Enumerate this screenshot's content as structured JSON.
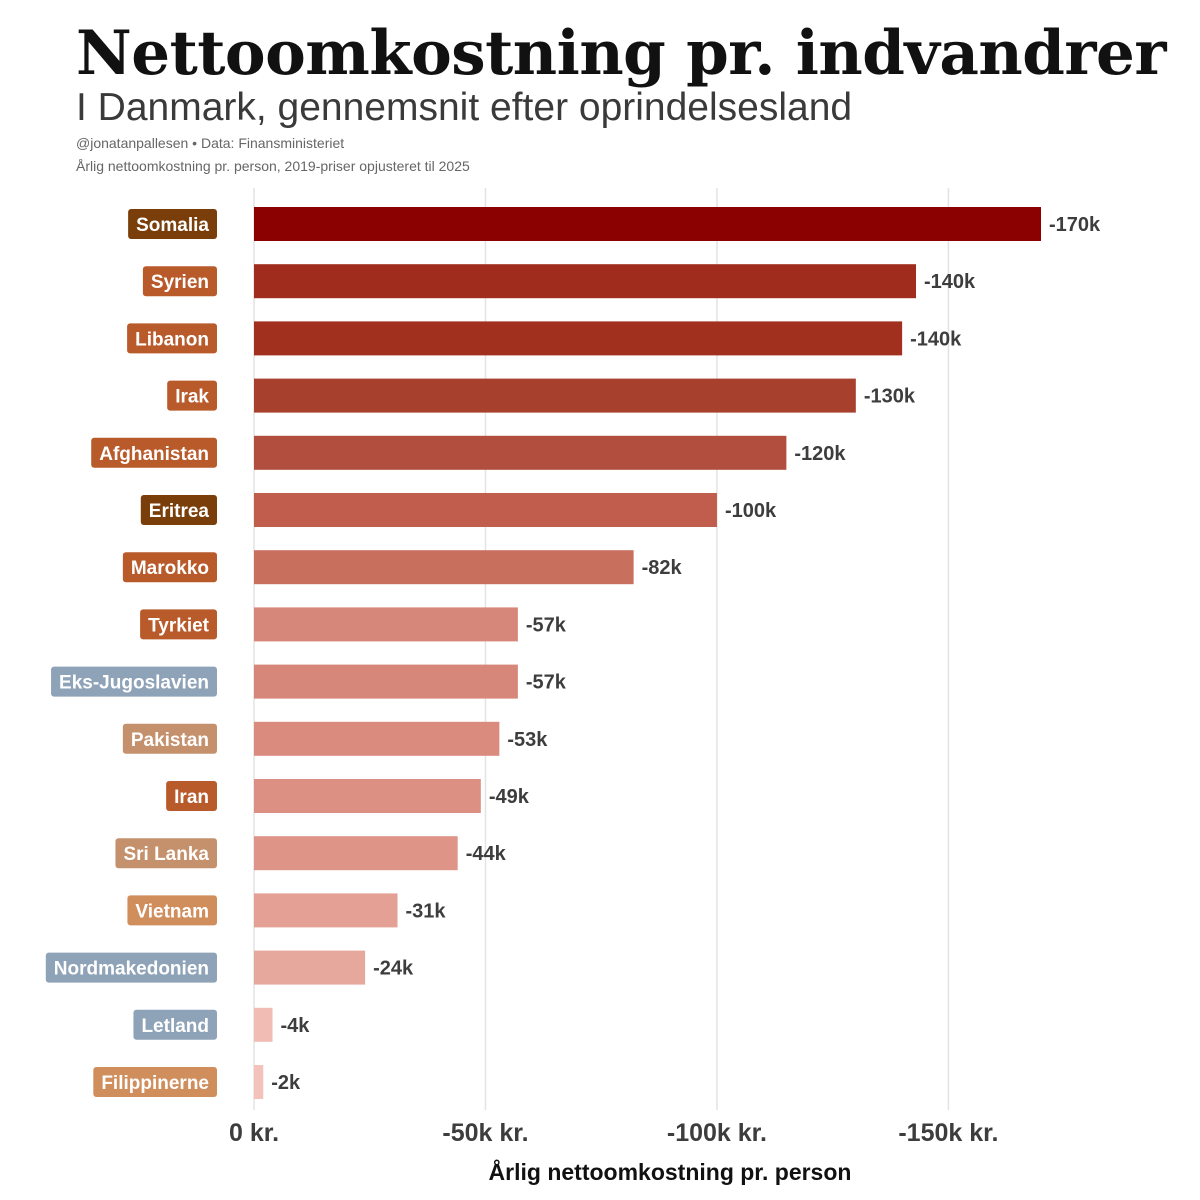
{
  "header": {
    "title": "Nettoomkostning pr. indvandrer",
    "subtitle": "I Danmark, gennemsnit efter oprindelsesland",
    "source": "@jonatanpallesen • Data: Finansministeriet",
    "note": "Årlig nettoomkostning pr. person, 2019-priser opjusteret til 2025"
  },
  "chart_data": {
    "type": "bar",
    "orientation": "horizontal",
    "title": "Nettoomkostning pr. indvandrer",
    "subtitle": "I Danmark, gennemsnit efter oprindelsesland",
    "xlabel": "Årlig nettoomkostning pr. person",
    "xlim": [
      0,
      -170000
    ],
    "grid": true,
    "ticks": [
      {
        "value": 0,
        "label": "0 kr."
      },
      {
        "value": -50000,
        "label": "-50k kr."
      },
      {
        "value": -100000,
        "label": "-100k kr."
      },
      {
        "value": -150000,
        "label": "-150k kr."
      }
    ],
    "bars": [
      {
        "category": "Somalia",
        "value": -170000,
        "label": "-170k",
        "bar_color": "#8b0000",
        "tag_color": "#7a3e0a"
      },
      {
        "category": "Syrien",
        "value": -143000,
        "label": "-140k",
        "bar_color": "#a02c1e",
        "tag_color": "#b95a2b"
      },
      {
        "category": "Libanon",
        "value": -140000,
        "label": "-140k",
        "bar_color": "#a2301f",
        "tag_color": "#b95a2b"
      },
      {
        "category": "Irak",
        "value": -130000,
        "label": "-130k",
        "bar_color": "#a8402e",
        "tag_color": "#b95a2b"
      },
      {
        "category": "Afghanistan",
        "value": -115000,
        "label": "-120k",
        "bar_color": "#b24e3e",
        "tag_color": "#b95a2b"
      },
      {
        "category": "Eritrea",
        "value": -100000,
        "label": "-100k",
        "bar_color": "#c05d4c",
        "tag_color": "#7a3e0a"
      },
      {
        "category": "Marokko",
        "value": -82000,
        "label": "-82k",
        "bar_color": "#c86f5e",
        "tag_color": "#b95a2b"
      },
      {
        "category": "Tyrkiet",
        "value": -57000,
        "label": "-57k",
        "bar_color": "#d6877a",
        "tag_color": "#b95a2b"
      },
      {
        "category": "Eks-Jugoslavien",
        "value": -57000,
        "label": "-57k",
        "bar_color": "#d6877a",
        "tag_color": "#8fa3b8"
      },
      {
        "category": "Pakistan",
        "value": -53000,
        "label": "-53k",
        "bar_color": "#da8b7e",
        "tag_color": "#c4916c"
      },
      {
        "category": "Iran",
        "value": -49000,
        "label": "-49k",
        "bar_color": "#dc9083",
        "tag_color": "#b95a2b"
      },
      {
        "category": "Sri Lanka",
        "value": -44000,
        "label": "-44k",
        "bar_color": "#de9588",
        "tag_color": "#c4916c"
      },
      {
        "category": "Vietnam",
        "value": -31000,
        "label": "-31k",
        "bar_color": "#e4a094",
        "tag_color": "#d08e5d"
      },
      {
        "category": "Nordmakedonien",
        "value": -24000,
        "label": "-24k",
        "bar_color": "#e6a79c",
        "tag_color": "#8fa3b8"
      },
      {
        "category": "Letland",
        "value": -4000,
        "label": "-4k",
        "bar_color": "#f1bcb4",
        "tag_color": "#8fa3b8"
      },
      {
        "category": "Filippinerne",
        "value": -2000,
        "label": "-2k",
        "bar_color": "#f3c2ba",
        "tag_color": "#d08e5d"
      }
    ]
  }
}
